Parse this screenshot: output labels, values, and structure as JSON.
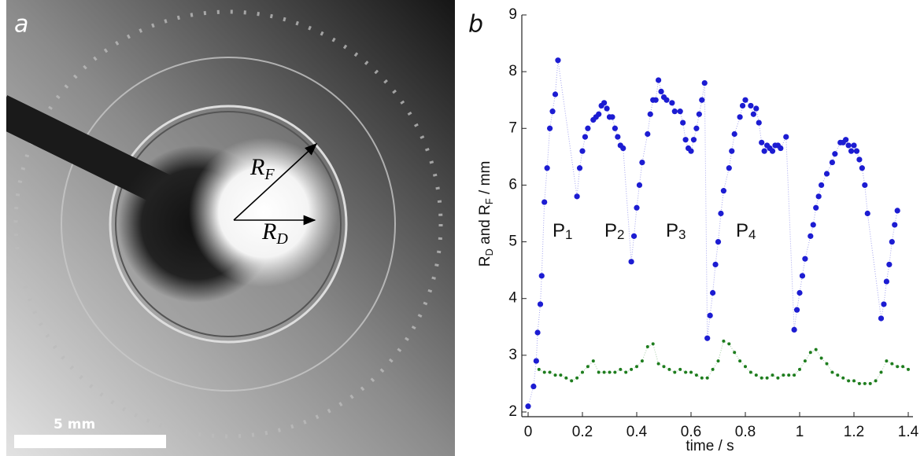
{
  "panel_a": {
    "label": "a",
    "r_f": [
      "R",
      "F"
    ],
    "r_d": [
      "R",
      "D"
    ],
    "scale_bar": "5 mm"
  },
  "panel_b": {
    "label": "b"
  },
  "chart_data": {
    "type": "scatter",
    "x_label": "time / s",
    "y_label": [
      "R",
      "D",
      " and R",
      "F",
      " / mm"
    ],
    "annotations": [
      [
        "P",
        "1"
      ],
      [
        "P",
        "2"
      ],
      [
        "P",
        "3"
      ],
      [
        "P",
        "4"
      ]
    ],
    "xlim": [
      0,
      1.4
    ],
    "xticks": [
      0,
      0.2,
      0.4,
      0.6,
      0.8,
      1,
      1.2,
      1.4
    ],
    "ylim": [
      2,
      9
    ],
    "yticks": [
      2,
      3,
      4,
      5,
      6,
      7,
      8,
      9
    ],
    "series": [
      {
        "color": "#1c1cd2",
        "x": [
          0,
          0.02,
          0.03,
          0.035,
          0.045,
          0.05,
          0.06,
          0.07,
          0.08,
          0.09,
          0.1,
          0.11,
          0.18,
          0.19,
          0.2,
          0.21,
          0.22,
          0.24,
          0.25,
          0.26,
          0.27,
          0.28,
          0.29,
          0.3,
          0.31,
          0.32,
          0.33,
          0.34,
          0.35,
          0.38,
          0.39,
          0.4,
          0.41,
          0.42,
          0.44,
          0.45,
          0.46,
          0.47,
          0.48,
          0.49,
          0.5,
          0.51,
          0.53,
          0.54,
          0.56,
          0.57,
          0.58,
          0.59,
          0.6,
          0.61,
          0.62,
          0.63,
          0.64,
          0.65,
          0.66,
          0.67,
          0.68,
          0.69,
          0.7,
          0.71,
          0.72,
          0.74,
          0.75,
          0.76,
          0.78,
          0.79,
          0.8,
          0.82,
          0.83,
          0.84,
          0.85,
          0.86,
          0.87,
          0.88,
          0.89,
          0.9,
          0.91,
          0.92,
          0.93,
          0.95,
          0.98,
          0.99,
          1,
          1.01,
          1.02,
          1.04,
          1.05,
          1.06,
          1.07,
          1.08,
          1.1,
          1.12,
          1.13,
          1.15,
          1.16,
          1.17,
          1.18,
          1.19,
          1.2,
          1.21,
          1.22,
          1.23,
          1.24,
          1.25,
          1.3,
          1.31,
          1.32,
          1.33,
          1.34,
          1.35,
          1.36
        ],
        "values": [
          2.1,
          2.45,
          2.9,
          3.4,
          3.9,
          4.4,
          5.7,
          6.3,
          7.0,
          7.3,
          7.6,
          8.2,
          5.8,
          6.3,
          6.6,
          6.85,
          7.0,
          7.15,
          7.2,
          7.25,
          7.4,
          7.45,
          7.35,
          7.2,
          7.2,
          7.0,
          6.85,
          6.7,
          6.65,
          4.65,
          5.1,
          5.6,
          6.0,
          6.4,
          6.9,
          7.25,
          7.5,
          7.5,
          7.85,
          7.65,
          7.55,
          7.5,
          7.45,
          7.3,
          7.3,
          7.1,
          6.8,
          6.65,
          6.6,
          6.8,
          7.0,
          7.25,
          7.5,
          7.8,
          3.3,
          3.7,
          4.1,
          4.6,
          5.0,
          5.5,
          5.9,
          6.3,
          6.6,
          6.9,
          7.2,
          7.4,
          7.5,
          7.4,
          7.25,
          7.35,
          7.1,
          6.75,
          6.6,
          6.7,
          6.65,
          6.6,
          6.7,
          6.7,
          6.65,
          6.85,
          3.45,
          3.8,
          4.1,
          4.4,
          4.7,
          5.1,
          5.3,
          5.6,
          5.8,
          6.0,
          6.2,
          6.4,
          6.55,
          6.75,
          6.75,
          6.8,
          6.7,
          6.6,
          6.7,
          6.6,
          6.45,
          6.3,
          6.0,
          5.5,
          3.65,
          3.9,
          4.3,
          4.6,
          5.0,
          5.3,
          5.55
        ]
      },
      {
        "color": "#1e7d1e",
        "x": [
          0.04,
          0.06,
          0.08,
          0.1,
          0.12,
          0.14,
          0.16,
          0.18,
          0.2,
          0.22,
          0.24,
          0.26,
          0.28,
          0.3,
          0.32,
          0.34,
          0.36,
          0.38,
          0.4,
          0.42,
          0.44,
          0.46,
          0.48,
          0.5,
          0.52,
          0.54,
          0.56,
          0.58,
          0.6,
          0.62,
          0.64,
          0.66,
          0.68,
          0.7,
          0.72,
          0.74,
          0.76,
          0.78,
          0.8,
          0.82,
          0.84,
          0.86,
          0.88,
          0.9,
          0.92,
          0.94,
          0.96,
          0.98,
          1,
          1.02,
          1.04,
          1.06,
          1.08,
          1.1,
          1.12,
          1.14,
          1.16,
          1.18,
          1.2,
          1.22,
          1.24,
          1.26,
          1.28,
          1.3,
          1.32,
          1.34,
          1.36,
          1.38,
          1.4
        ],
        "values": [
          2.75,
          2.7,
          2.7,
          2.65,
          2.65,
          2.6,
          2.55,
          2.6,
          2.7,
          2.8,
          2.9,
          2.7,
          2.7,
          2.7,
          2.7,
          2.75,
          2.7,
          2.75,
          2.8,
          2.9,
          3.15,
          3.2,
          2.85,
          2.8,
          2.75,
          2.7,
          2.75,
          2.7,
          2.7,
          2.65,
          2.6,
          2.6,
          2.75,
          2.9,
          3.25,
          3.2,
          3.05,
          2.9,
          2.8,
          2.7,
          2.65,
          2.6,
          2.6,
          2.65,
          2.6,
          2.65,
          2.65,
          2.65,
          2.75,
          2.9,
          3.05,
          3.1,
          2.95,
          2.85,
          2.7,
          2.65,
          2.6,
          2.55,
          2.55,
          2.5,
          2.5,
          2.5,
          2.55,
          2.7,
          2.9,
          2.85,
          2.8,
          2.8,
          2.75
        ]
      }
    ]
  }
}
